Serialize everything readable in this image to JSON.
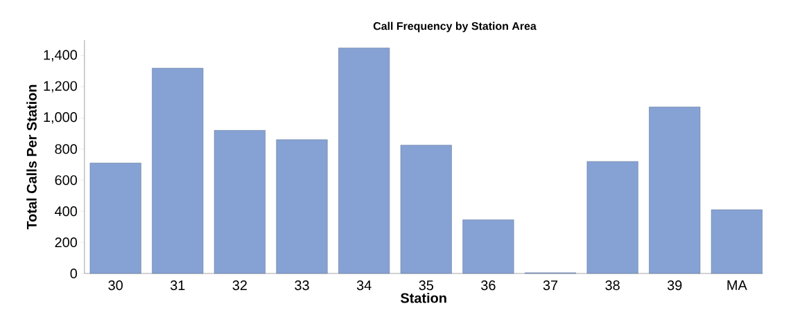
{
  "chart_data": {
    "type": "bar",
    "title": "Call Frequency by Station Area",
    "xlabel": "Station",
    "ylabel": "Total Calls Per Station",
    "categories": [
      "30",
      "31",
      "32",
      "33",
      "34",
      "35",
      "36",
      "37",
      "38",
      "39",
      "MA"
    ],
    "values": [
      710,
      1320,
      920,
      860,
      1450,
      825,
      345,
      5,
      720,
      1070,
      410
    ],
    "color": "#86a2d4",
    "ylim": [
      0,
      1500
    ],
    "yticks": [
      0,
      200,
      400,
      600,
      800,
      {
        "value": 1000,
        "label": "1,000"
      },
      {
        "value": 1200,
        "label": "1,200"
      },
      {
        "value": 1400,
        "label": "1,400"
      }
    ]
  }
}
